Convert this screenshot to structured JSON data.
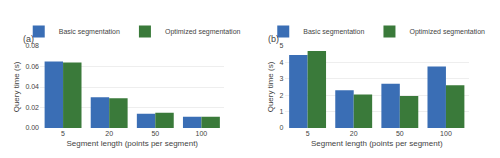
{
  "chart_data": [
    {
      "type": "bar",
      "title": "(a)",
      "xlabel": "Segment length (points per segment)",
      "ylabel": "Query time (s)",
      "categories": [
        "5",
        "20",
        "50",
        "100"
      ],
      "series": [
        {
          "name": "Basic segmentation",
          "color": "#3a6eb5",
          "values": [
            0.065,
            0.03,
            0.014,
            0.011
          ]
        },
        {
          "name": "Optimized segmentation",
          "color": "#3a7a3a",
          "values": [
            0.064,
            0.029,
            0.015,
            0.011
          ]
        }
      ],
      "ylim": [
        0,
        0.08
      ],
      "yticks": [
        {
          "value": 0,
          "label": "0.00"
        },
        0.02,
        0.04,
        0.06,
        0.08
      ],
      "grid": true,
      "legend": "top"
    },
    {
      "type": "bar",
      "title": "(b)",
      "xlabel": "Segment length (points per segment)",
      "ylabel": "Query time (s)",
      "categories": [
        "5",
        "20",
        "50",
        "100"
      ],
      "series": [
        {
          "name": "Basic segmentation",
          "color": "#3a6eb5",
          "values": [
            4.45,
            2.3,
            2.7,
            3.75
          ]
        },
        {
          "name": "Optimized segmentation",
          "color": "#3a7a3a",
          "values": [
            4.7,
            2.05,
            1.95,
            2.6
          ]
        }
      ],
      "ylim": [
        0,
        5
      ],
      "yticks": [
        0,
        1,
        2,
        3,
        4,
        5
      ],
      "grid": true,
      "legend": "top"
    }
  ]
}
